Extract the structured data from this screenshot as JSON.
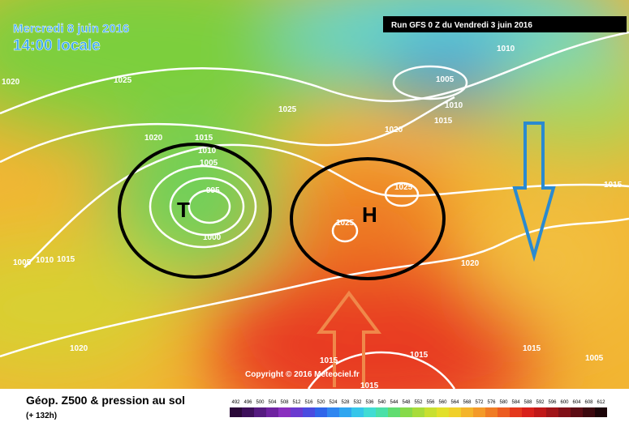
{
  "header": {
    "date": "Mercredi 8 juin 2016",
    "time": "14:00 locale",
    "run": "Run GFS 0 Z du Vendredi 3 juin 2016"
  },
  "map": {
    "low_label": "T",
    "high_label": "H",
    "copyright": "Copyright © 2016 Meteociel.fr",
    "isobar_labels": [
      1020,
      1025,
      1025,
      1010,
      1005,
      1010,
      1015,
      1020,
      1020,
      1015,
      1010,
      1005,
      995,
      1000,
      1025,
      1025,
      1005,
      1010,
      1015,
      1020,
      1015,
      1015,
      1015,
      1005,
      1020,
      1015,
      1015
    ]
  },
  "footer": {
    "title": "Géop. Z500 & pression au sol",
    "lead": "(+ 132h)",
    "scale": [
      492,
      496,
      500,
      504,
      508,
      512,
      516,
      520,
      524,
      528,
      532,
      536,
      540,
      544,
      548,
      552,
      556,
      560,
      564,
      568,
      572,
      576,
      580,
      584,
      588,
      592,
      596,
      600,
      604,
      608,
      612
    ]
  }
}
